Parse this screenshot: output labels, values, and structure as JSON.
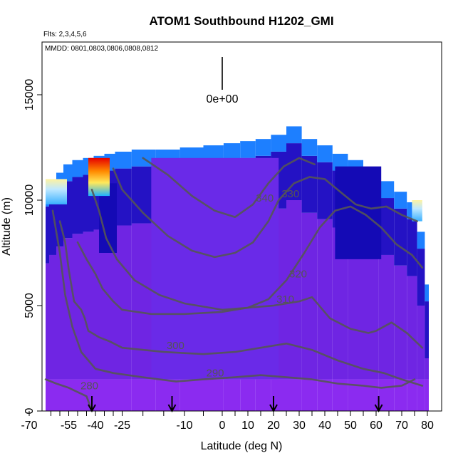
{
  "chart_data": {
    "type": "heatmap",
    "title": "ATOM1 Southbound H1202_GMI",
    "flights_note": "Flts: 2,3,4,5,6",
    "dates_note": "MMDD: 0801,0803,0806,0808,0812",
    "xlabel": "Latitude (deg N)",
    "ylabel": "Altitude (m)",
    "xlim": [
      -70,
      80
    ],
    "ylim": [
      0,
      17500
    ],
    "x_ticks": [
      -70,
      -55,
      -40,
      -25,
      -10,
      0,
      10,
      20,
      30,
      40,
      50,
      60,
      70,
      80
    ],
    "y_ticks": [
      0,
      5000,
      10000,
      15000
    ],
    "scale_label": "0e+00",
    "flight_markers_lat": [
      -42,
      -13,
      20,
      61
    ],
    "columns": [
      {
        "lat": -68,
        "top": 10500
      },
      {
        "lat": -64,
        "top": 10900
      },
      {
        "lat": -60,
        "top": 11300
      },
      {
        "lat": -56,
        "top": 11700
      },
      {
        "lat": -50,
        "top": 11900
      },
      {
        "lat": -44,
        "top": 12000
      },
      {
        "lat": -38,
        "top": 12100
      },
      {
        "lat": -32,
        "top": 12200
      },
      {
        "lat": -26,
        "top": 12300
      },
      {
        "lat": -20,
        "top": 12400
      },
      {
        "lat": -14,
        "top": 12400
      },
      {
        "lat": -8,
        "top": 12500
      },
      {
        "lat": -2,
        "top": 12600
      },
      {
        "lat": 4,
        "top": 12700
      },
      {
        "lat": 10,
        "top": 12800
      },
      {
        "lat": 16,
        "top": 12900
      },
      {
        "lat": 22,
        "top": 13100
      },
      {
        "lat": 28,
        "top": 13500
      },
      {
        "lat": 34,
        "top": 12900
      },
      {
        "lat": 40,
        "top": 12600
      },
      {
        "lat": 46,
        "top": 12200
      },
      {
        "lat": 52,
        "top": 11900
      },
      {
        "lat": 58,
        "top": 11400
      },
      {
        "lat": 64,
        "top": 10900
      },
      {
        "lat": 70,
        "top": 10400
      },
      {
        "lat": 74,
        "top": 9900
      },
      {
        "lat": 78,
        "top": 8500
      },
      {
        "lat": 80,
        "top": 6000
      }
    ],
    "hot_spots": [
      {
        "lat_min": -44,
        "lat_max": -32,
        "alt_min": 10200,
        "alt_max": 12000,
        "value": "high"
      },
      {
        "lat_min": -68,
        "lat_max": -56,
        "alt_min": 9800,
        "alt_max": 11000,
        "value": "medium"
      },
      {
        "lat_min": 74,
        "lat_max": 78,
        "alt_min": 9000,
        "alt_max": 10000,
        "value": "medium"
      }
    ],
    "contours": [
      {
        "label": "280",
        "points": [
          [
            -68,
            1500
          ],
          [
            -62,
            1300
          ],
          [
            -55,
            1100
          ],
          [
            -50,
            900
          ],
          [
            -45,
            700
          ],
          [
            -42,
            0
          ]
        ]
      },
      {
        "label": "290",
        "points": [
          [
            -64,
            9500
          ],
          [
            -60,
            7500
          ],
          [
            -57,
            5500
          ],
          [
            -53,
            4000
          ],
          [
            -48,
            2800
          ],
          [
            -40,
            2000
          ],
          [
            -30,
            1800
          ],
          [
            -20,
            1600
          ],
          [
            -12,
            1400
          ],
          [
            -5,
            1500
          ],
          [
            5,
            1600
          ],
          [
            15,
            1700
          ],
          [
            25,
            1600
          ],
          [
            35,
            1500
          ],
          [
            45,
            1300
          ],
          [
            55,
            1200
          ],
          [
            62,
            1100
          ],
          [
            70,
            1200
          ],
          [
            75,
            1500
          ]
        ]
      },
      {
        "label": "300",
        "points": [
          [
            -60,
            9000
          ],
          [
            -57,
            8000
          ],
          [
            -55,
            6700
          ],
          [
            -52,
            5200
          ],
          [
            -48,
            4800
          ],
          [
            -46,
            4400
          ],
          [
            -44,
            3800
          ],
          [
            -38,
            3500
          ],
          [
            -32,
            3300
          ],
          [
            -25,
            3000
          ],
          [
            -15,
            2800
          ],
          [
            -5,
            2700
          ],
          [
            5,
            2800
          ],
          [
            15,
            3000
          ],
          [
            25,
            3200
          ],
          [
            35,
            2900
          ],
          [
            45,
            2400
          ],
          [
            55,
            2000
          ],
          [
            63,
            1800
          ],
          [
            70,
            1500
          ],
          [
            78,
            1200
          ]
        ]
      },
      {
        "label": "310",
        "points": [
          [
            -50,
            8000
          ],
          [
            -45,
            7200
          ],
          [
            -40,
            6500
          ],
          [
            -36,
            5800
          ],
          [
            -30,
            5200
          ],
          [
            -25,
            4800
          ],
          [
            -18,
            4600
          ],
          [
            -10,
            4600
          ],
          [
            0,
            4700
          ],
          [
            10,
            4900
          ],
          [
            20,
            5000
          ],
          [
            30,
            5200
          ],
          [
            35,
            5400
          ],
          [
            42,
            4400
          ],
          [
            50,
            3900
          ],
          [
            57,
            3700
          ],
          [
            60,
            3800
          ],
          [
            66,
            4200
          ],
          [
            72,
            3700
          ],
          [
            78,
            3000
          ]
        ]
      },
      {
        "label": "320",
        "points": [
          [
            -42,
            10500
          ],
          [
            -38,
            9500
          ],
          [
            -34,
            8200
          ],
          [
            -28,
            7200
          ],
          [
            -22,
            6200
          ],
          [
            -16,
            5500
          ],
          [
            -10,
            5100
          ],
          [
            0,
            4800
          ],
          [
            10,
            4900
          ],
          [
            18,
            5300
          ],
          [
            25,
            6200
          ],
          [
            32,
            7500
          ],
          [
            38,
            8700
          ],
          [
            44,
            9500
          ],
          [
            50,
            9700
          ],
          [
            56,
            9300
          ],
          [
            62,
            8700
          ],
          [
            68,
            7900
          ],
          [
            74,
            7400
          ],
          [
            78,
            6800
          ]
        ]
      },
      {
        "label": "330",
        "points": [
          [
            -30,
            11500
          ],
          [
            -25,
            10500
          ],
          [
            -20,
            9400
          ],
          [
            -14,
            8300
          ],
          [
            -8,
            7600
          ],
          [
            -2,
            7300
          ],
          [
            5,
            7500
          ],
          [
            12,
            8000
          ],
          [
            18,
            9000
          ],
          [
            22,
            10000
          ],
          [
            28,
            10800
          ],
          [
            34,
            11100
          ],
          [
            40,
            11000
          ],
          [
            46,
            10400
          ],
          [
            52,
            9800
          ],
          [
            58,
            9600
          ],
          [
            64,
            9700
          ],
          [
            70,
            9300
          ],
          [
            76,
            9000
          ]
        ]
      },
      {
        "label": "340",
        "points": [
          [
            -20,
            12000
          ],
          [
            -14,
            11200
          ],
          [
            -8,
            10200
          ],
          [
            -2,
            9500
          ],
          [
            5,
            9200
          ],
          [
            12,
            9800
          ],
          [
            18,
            10800
          ],
          [
            24,
            11600
          ],
          [
            30,
            12000
          ],
          [
            36,
            11700
          ]
        ]
      }
    ]
  }
}
